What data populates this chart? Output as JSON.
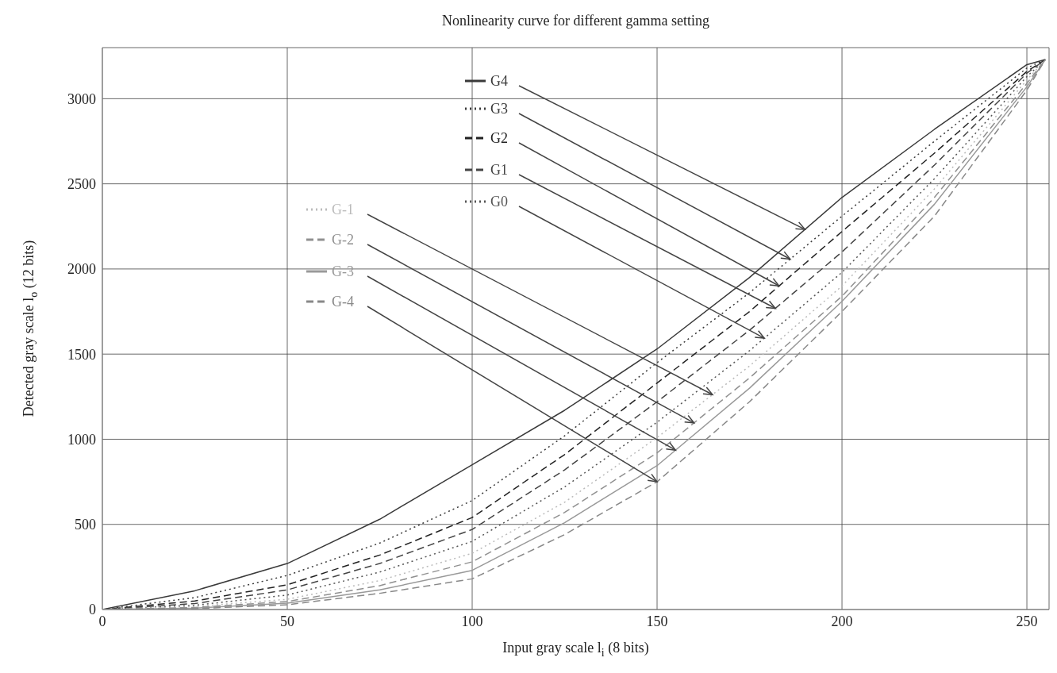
{
  "chart_data": {
    "type": "line",
    "title": "Nonlinearity curve for different gamma setting",
    "xlabel": "Input gray scale l$_{i}$ (8 bits)",
    "ylabel": "Detected gray scale l$_{o}$ (12 bits)",
    "x": [
      0,
      25,
      50,
      75,
      100,
      125,
      150,
      175,
      200,
      225,
      250,
      255
    ],
    "series": [
      {
        "name": "G4",
        "color": "#3a3a3a",
        "line_style": "solid",
        "values": [
          0,
          110,
          270,
          530,
          850,
          1170,
          1530,
          1950,
          2420,
          2820,
          3200,
          3230
        ]
      },
      {
        "name": "G3",
        "color": "#3a3a3a",
        "line_style": "dotted",
        "values": [
          0,
          70,
          200,
          390,
          640,
          1020,
          1450,
          1860,
          2310,
          2750,
          3180,
          3230
        ]
      },
      {
        "name": "G2",
        "color": "#222222",
        "line_style": "dashed",
        "values": [
          0,
          50,
          145,
          320,
          540,
          910,
          1330,
          1750,
          2220,
          2680,
          3160,
          3230
        ]
      },
      {
        "name": "G1",
        "color": "#444444",
        "line_style": "dashed",
        "values": [
          0,
          35,
          115,
          270,
          470,
          820,
          1220,
          1640,
          2100,
          2610,
          3150,
          3230
        ]
      },
      {
        "name": "G0",
        "color": "#555555",
        "line_style": "dotted",
        "values": [
          0,
          25,
          85,
          220,
          400,
          720,
          1100,
          1520,
          1980,
          2530,
          3130,
          3230
        ]
      },
      {
        "name": "G-1",
        "color": "#bbbbbb",
        "line_style": "dotted",
        "values": [
          0,
          18,
          60,
          170,
          330,
          630,
          1010,
          1430,
          1900,
          2470,
          3110,
          3230
        ]
      },
      {
        "name": "G-2",
        "color": "#909090",
        "line_style": "dashed",
        "values": [
          0,
          12,
          47,
          140,
          280,
          570,
          920,
          1360,
          1840,
          2420,
          3090,
          3230
        ]
      },
      {
        "name": "G-3",
        "color": "#999999",
        "line_style": "solid",
        "values": [
          0,
          8,
          37,
          115,
          230,
          510,
          845,
          1300,
          1810,
          2380,
          3070,
          3230
        ]
      },
      {
        "name": "G-4",
        "color": "#888888",
        "line_style": "dashed",
        "values": [
          0,
          5,
          28,
          95,
          180,
          440,
          750,
          1220,
          1750,
          2310,
          3050,
          3230
        ]
      }
    ],
    "xlim": [
      0,
      256
    ],
    "ylim": [
      0,
      3300
    ],
    "xticks": [
      0,
      50,
      100,
      150,
      200,
      250
    ],
    "yticks": [
      0,
      500,
      1000,
      1500,
      2000,
      2500,
      3000
    ],
    "grid": true,
    "legend": "top"
  }
}
